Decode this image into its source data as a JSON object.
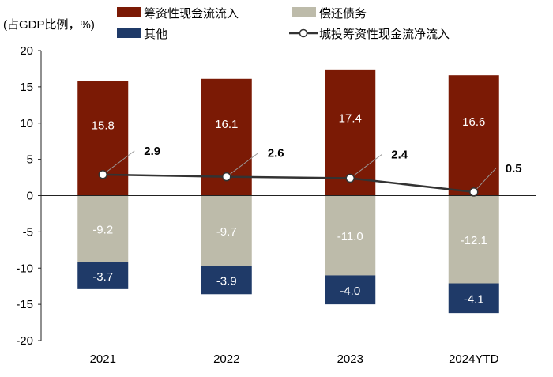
{
  "chart_data": {
    "type": "bar",
    "unit_label": "(占GDP比例，%)",
    "categories": [
      "2021",
      "2022",
      "2023",
      "2024YTD"
    ],
    "ylim": [
      -20,
      20
    ],
    "yticks": [
      20,
      15,
      10,
      5,
      0,
      -5,
      -10,
      -15,
      -20
    ],
    "series": [
      {
        "name": "筹资性现金流流入",
        "kind": "bar",
        "color": "#7B1A05",
        "label_color": "#ffffff",
        "values": [
          15.8,
          16.1,
          17.4,
          16.6
        ],
        "labels": [
          "15.8",
          "16.1",
          "17.4",
          "16.6"
        ]
      },
      {
        "name": "偿还债务",
        "kind": "bar",
        "color": "#BDBBAA",
        "label_color": "#ffffff",
        "values": [
          -9.2,
          -9.7,
          -11.0,
          -12.1
        ],
        "labels": [
          "-9.2",
          "-9.7",
          "-11.0",
          "-12.1"
        ]
      },
      {
        "name": "其他",
        "kind": "bar",
        "color": "#1F3A68",
        "label_color": "#ffffff",
        "values": [
          -3.7,
          -3.9,
          -4.0,
          -4.1
        ],
        "labels": [
          "-3.7",
          "-3.9",
          "-4.0",
          "-4.1"
        ]
      },
      {
        "name": "城投筹资性现金流净流入",
        "kind": "line",
        "color": "#333333",
        "values": [
          2.9,
          2.6,
          2.4,
          0.5
        ],
        "labels": [
          "2.9",
          "2.6",
          "2.4",
          "0.5"
        ]
      }
    ],
    "legend": [
      "筹资性现金流流入",
      "偿还债务",
      "其他",
      "城投筹资性现金流净流入"
    ],
    "legend_position": "top"
  }
}
